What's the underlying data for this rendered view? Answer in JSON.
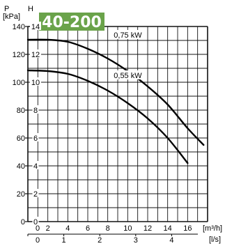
{
  "chart_data": {
    "type": "line",
    "title": "40-200",
    "colors": {
      "badge": "#6aa34a",
      "curve": "#000000",
      "grid": "#111111"
    },
    "y_left_label_line1": "P",
    "y_left_label_line2": "[kPa]",
    "y_right_label": "H",
    "x_label_top": "[m³/h]",
    "x_label_bottom": "[l/s]",
    "xlim": [
      0,
      18
    ],
    "ylim_kpa": [
      0,
      140
    ],
    "ylim_m": [
      0,
      14
    ],
    "x_ticks_m3h": [
      "0",
      "2",
      "4",
      "6",
      "8",
      "10",
      "12",
      "14",
      "16"
    ],
    "x_ticks_ls": [
      "0",
      "1",
      "2",
      "3",
      "4"
    ],
    "y_ticks_kpa": [
      "0",
      "20",
      "40",
      "60",
      "80",
      "100",
      "120",
      "140"
    ],
    "y_ticks_m": [
      "0",
      "2",
      "4",
      "6",
      "8",
      "10",
      "12",
      "14"
    ],
    "grid": true,
    "series": [
      {
        "name": "0,75 kW",
        "x": [
          0,
          2,
          4,
          6,
          8,
          10,
          12,
          14,
          16,
          17.6
        ],
        "y": [
          130.5,
          130.5,
          129,
          124,
          117,
          108,
          97,
          84,
          67,
          55
        ]
      },
      {
        "name": "0,55 kW",
        "x": [
          0,
          2,
          4,
          6,
          8,
          10,
          12,
          14,
          16
        ],
        "y": [
          108.5,
          108,
          106,
          101,
          94,
          85,
          74,
          60,
          42
        ]
      }
    ]
  }
}
